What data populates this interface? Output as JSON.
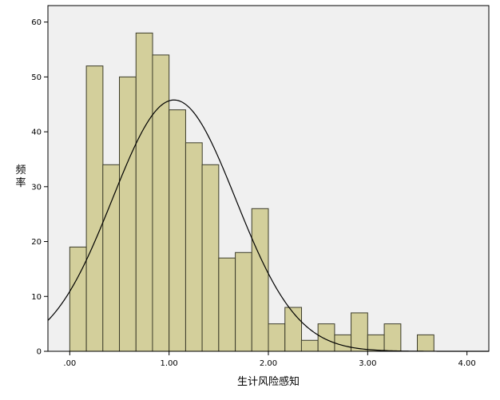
{
  "chart_data": {
    "type": "bar",
    "subtype": "histogram-with-normal-curve",
    "xlabel": "生计风险感知",
    "ylabel": "频率",
    "xlim": [
      -0.22,
      4.22
    ],
    "ylim": [
      0,
      63
    ],
    "x_ticks": [
      {
        "value": 0,
        "label": ".00"
      },
      {
        "value": 1,
        "label": "1.00"
      },
      {
        "value": 2,
        "label": "2.00"
      },
      {
        "value": 3,
        "label": "3.00"
      },
      {
        "value": 4,
        "label": "4.00"
      }
    ],
    "y_ticks": [
      {
        "value": 0,
        "label": "0"
      },
      {
        "value": 10,
        "label": "10"
      },
      {
        "value": 20,
        "label": "20"
      },
      {
        "value": 30,
        "label": "30"
      },
      {
        "value": 40,
        "label": "40"
      },
      {
        "value": 50,
        "label": "50"
      },
      {
        "value": 60,
        "label": "60"
      }
    ],
    "bin_width": 0.167,
    "bins": [
      {
        "x0": 0.0,
        "count": 19
      },
      {
        "x0": 0.167,
        "count": 52
      },
      {
        "x0": 0.333,
        "count": 34
      },
      {
        "x0": 0.5,
        "count": 50
      },
      {
        "x0": 0.667,
        "count": 58
      },
      {
        "x0": 0.833,
        "count": 54
      },
      {
        "x0": 1.0,
        "count": 44
      },
      {
        "x0": 1.167,
        "count": 38
      },
      {
        "x0": 1.333,
        "count": 34
      },
      {
        "x0": 1.5,
        "count": 17
      },
      {
        "x0": 1.667,
        "count": 18
      },
      {
        "x0": 1.833,
        "count": 26
      },
      {
        "x0": 2.0,
        "count": 5
      },
      {
        "x0": 2.167,
        "count": 8
      },
      {
        "x0": 2.333,
        "count": 2
      },
      {
        "x0": 2.5,
        "count": 5
      },
      {
        "x0": 2.667,
        "count": 3
      },
      {
        "x0": 2.833,
        "count": 7
      },
      {
        "x0": 3.0,
        "count": 3
      },
      {
        "x0": 3.167,
        "count": 5
      },
      {
        "x0": 3.5,
        "count": 3
      }
    ],
    "normal_curve": {
      "mean": 1.05,
      "sd": 0.62,
      "peak": 45.8
    },
    "grid": false,
    "legend": "none",
    "colors": {
      "bar_fill": "#d3cf9b",
      "bar_stroke": "#3c3c2a",
      "plot_bg": "#f0f0f0",
      "figure_bg": "#ffffff",
      "curve": "#000000",
      "axis": "#000000"
    }
  }
}
